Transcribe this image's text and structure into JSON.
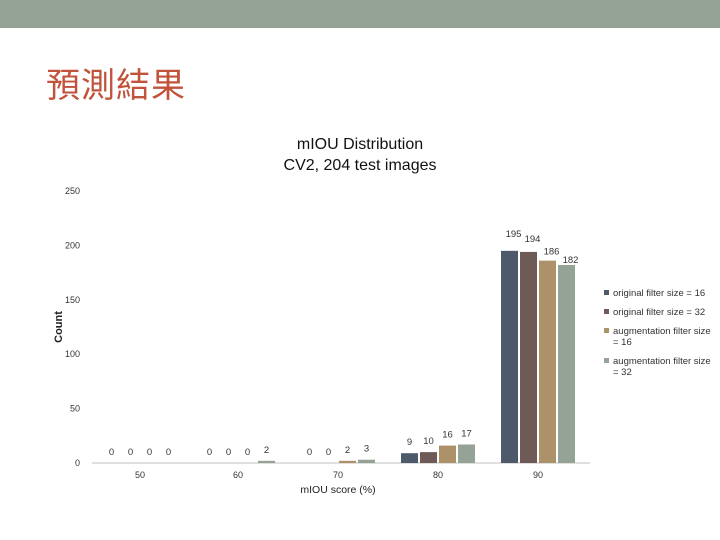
{
  "slide": {
    "title": "預測結果"
  },
  "colors": {
    "topbar": "#95a396",
    "title": "#c0533a"
  },
  "chart_data": {
    "type": "bar",
    "title": "mIOU Distribution",
    "subtitle": "CV2, 204 test images",
    "xlabel": "mIOU score (%)",
    "ylabel": "Count",
    "ylim": [
      0,
      250
    ],
    "yticks": [
      "0",
      "50",
      "100",
      "150",
      "200",
      "250"
    ],
    "grid": false,
    "legend_position": "right",
    "categories": [
      "50",
      "60",
      "70",
      "80",
      "90"
    ],
    "series": [
      {
        "name": "original filter size = 16",
        "color": "#4e5a69",
        "values": [
          0,
          0,
          0,
          9,
          195
        ]
      },
      {
        "name": "original filter size = 32",
        "color": "#6e5b57",
        "values": [
          0,
          0,
          0,
          10,
          194
        ]
      },
      {
        "name": "augmentation filter size = 16",
        "color": "#ad9169",
        "values": [
          0,
          0,
          2,
          16,
          186
        ]
      },
      {
        "name": "augmentation filter size = 32",
        "color": "#95a396",
        "values": [
          0,
          2,
          3,
          17,
          182
        ]
      }
    ]
  }
}
